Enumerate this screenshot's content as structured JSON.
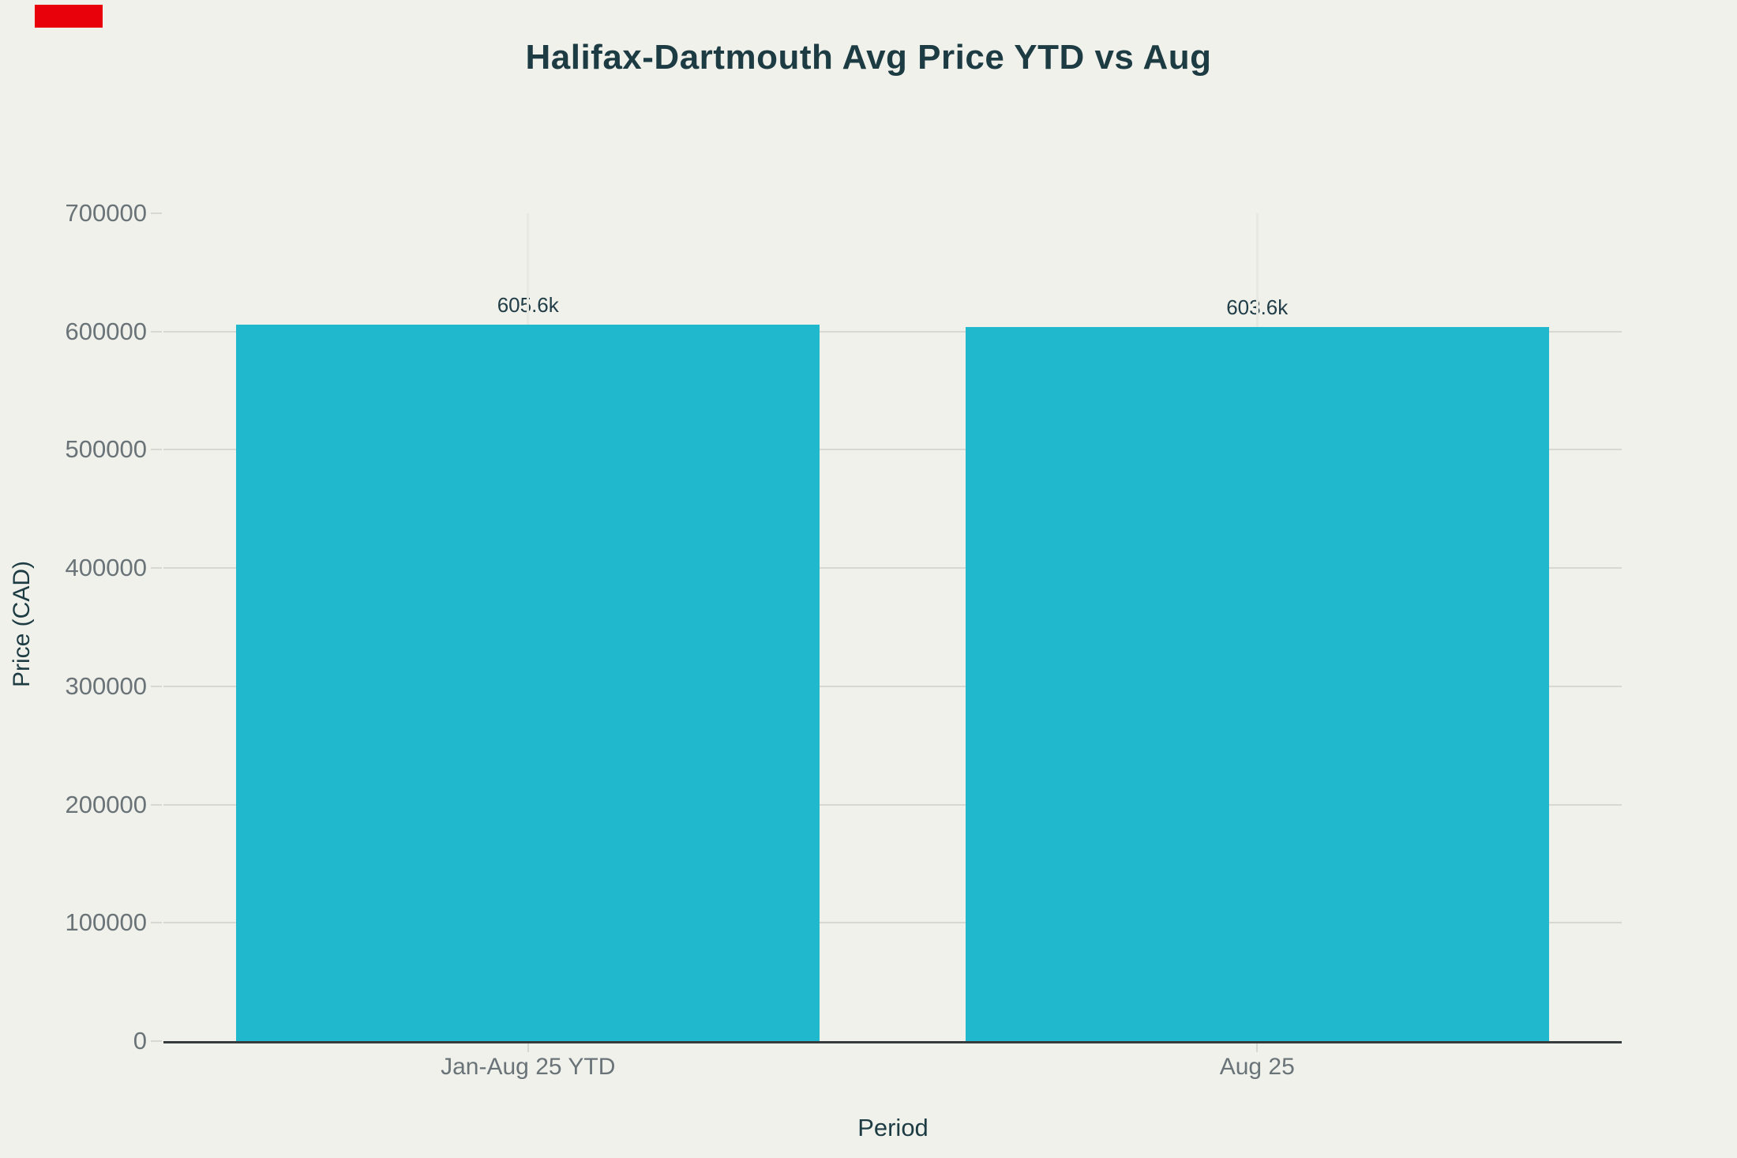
{
  "chart_data": {
    "type": "bar",
    "title": "Halifax-Dartmouth Avg Price YTD vs Aug",
    "xlabel": "Period",
    "ylabel": "Price (CAD)",
    "categories": [
      "Jan-Aug 25 YTD",
      "Aug 25"
    ],
    "values": [
      605600,
      603600
    ],
    "bar_labels": [
      "605.6k",
      "603.6k"
    ],
    "ylim": [
      0,
      700000
    ],
    "ytick_step": 100000,
    "ytick_labels": [
      "0",
      "100000",
      "200000",
      "300000",
      "400000",
      "500000",
      "600000",
      "700000"
    ],
    "grid": true,
    "legend": "none",
    "bar_width_fraction": 0.8
  },
  "colors": {
    "background": "#f1f1eb",
    "bar": "#1fb8cd",
    "title_text": "#1c3b43",
    "axis_title_text": "#1c3b43",
    "tick_text": "#697378",
    "gridline": "#d8d8d2",
    "vertical_gridline": "#e9e9e3",
    "axis_line": "#363b3e",
    "value_label_text": "#213d47",
    "corner_marker": "#e8000b"
  }
}
